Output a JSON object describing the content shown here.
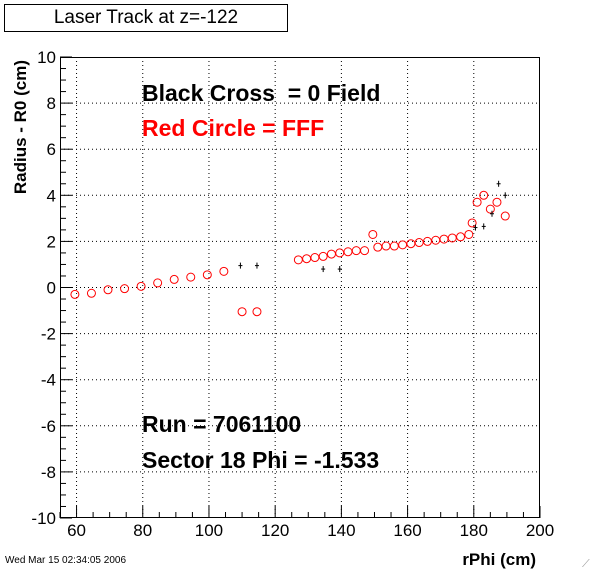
{
  "title": "Laser Track at z=-122",
  "timestamp": "Wed Mar 15 02:34:05 2006",
  "annotations": {
    "black_cross": "Black Cross  = 0 Field",
    "red_circle": "Red Circle = FFF",
    "run": "Run = 7061100",
    "sector": "Sector 18 Phi = -1.533"
  },
  "colors": {
    "fff_series": "#ff0000",
    "zero_field_series": "#000000",
    "grid": "#000000"
  },
  "chart_data": {
    "type": "scatter",
    "xlabel": "rPhi (cm)",
    "ylabel": "Radius - R0 (cm)",
    "xlim": [
      55,
      200
    ],
    "ylim": [
      -10,
      10
    ],
    "xticks": [
      60,
      80,
      100,
      120,
      140,
      160,
      180,
      200
    ],
    "yticks": [
      -10,
      -8,
      -6,
      -4,
      -2,
      0,
      2,
      4,
      6,
      8,
      10
    ],
    "grid": true,
    "series": [
      {
        "name": "Red Circle = FFF",
        "marker": "circle",
        "points": [
          [
            59.5,
            -0.3
          ],
          [
            64.5,
            -0.25
          ],
          [
            69.5,
            -0.1
          ],
          [
            74.5,
            -0.05
          ],
          [
            79.5,
            0.05
          ],
          [
            84.5,
            0.2
          ],
          [
            89.5,
            0.35
          ],
          [
            94.5,
            0.45
          ],
          [
            99.5,
            0.55
          ],
          [
            104.5,
            0.7
          ],
          [
            110,
            -1.05
          ],
          [
            114.5,
            -1.05
          ],
          [
            127,
            1.2
          ],
          [
            129.5,
            1.25
          ],
          [
            132,
            1.3
          ],
          [
            134.5,
            1.35
          ],
          [
            137,
            1.45
          ],
          [
            139.5,
            1.5
          ],
          [
            142,
            1.55
          ],
          [
            144.5,
            1.6
          ],
          [
            147,
            1.6
          ],
          [
            149.5,
            2.3
          ],
          [
            151,
            1.75
          ],
          [
            153.5,
            1.8
          ],
          [
            156,
            1.8
          ],
          [
            158.5,
            1.85
          ],
          [
            161,
            1.9
          ],
          [
            163.5,
            1.95
          ],
          [
            166,
            2.0
          ],
          [
            168.5,
            2.05
          ],
          [
            171,
            2.1
          ],
          [
            173.5,
            2.15
          ],
          [
            176,
            2.2
          ],
          [
            178.5,
            2.3
          ],
          [
            179.5,
            2.8
          ],
          [
            181,
            3.7
          ],
          [
            183,
            4.0
          ],
          [
            185,
            3.4
          ],
          [
            187,
            3.7
          ],
          [
            189.5,
            3.1
          ]
        ]
      },
      {
        "name": "Black Cross  = 0 Field",
        "marker": "cross",
        "points": [
          [
            109.5,
            0.95
          ],
          [
            114.5,
            0.95
          ],
          [
            134.5,
            0.8
          ],
          [
            139.5,
            0.8
          ],
          [
            180.5,
            2.6
          ],
          [
            183,
            2.65
          ],
          [
            185.5,
            3.2
          ],
          [
            187.5,
            4.5
          ],
          [
            189.5,
            4.0
          ]
        ]
      }
    ]
  }
}
